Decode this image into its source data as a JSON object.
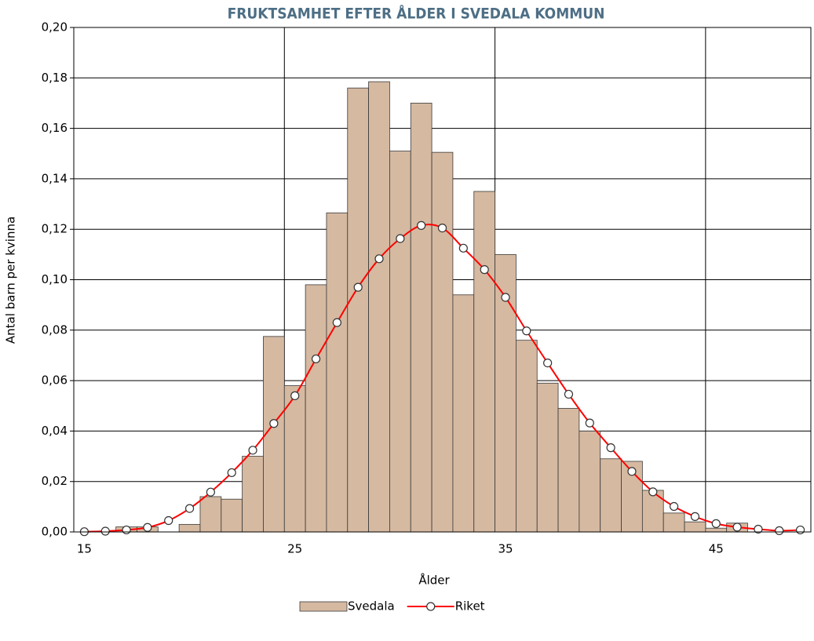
{
  "chart_data": {
    "type": "bar+line",
    "title": "FRUKTSAMHET EFTER ÅLDER I SVEDALA KOMMUN",
    "x_label": "Ålder",
    "y_label": "Antal barn per kvinna",
    "categories": [
      15,
      null,
      null,
      null,
      null,
      null,
      null,
      null,
      null,
      null,
      25,
      null,
      null,
      null,
      null,
      null,
      null,
      null,
      null,
      null,
      35,
      null,
      null,
      null,
      null,
      null,
      null,
      null,
      null,
      null,
      45,
      null,
      null,
      null,
      null
    ],
    "ylim": [
      0,
      0.2
    ],
    "yticks": [
      {
        "value": 0,
        "label": "0,00"
      },
      {
        "value": 0.02,
        "label": "0,02"
      },
      {
        "value": 0.04,
        "label": "0,04"
      },
      {
        "value": 0.06,
        "label": "0,06"
      },
      {
        "value": 0.08,
        "label": "0,08"
      },
      {
        "value": 0.1,
        "label": "0,10"
      },
      {
        "value": 0.12,
        "label": "0,12"
      },
      {
        "value": 0.14,
        "label": "0,14"
      },
      {
        "value": 0.16,
        "label": "0,16"
      },
      {
        "value": 0.18,
        "label": "0,18"
      },
      {
        "value": 0.2,
        "label": "0,20"
      }
    ],
    "grid": true,
    "legend": "bottom",
    "series": [
      {
        "name": "Svedala",
        "type": "bar",
        "color": "#d5b9a1",
        "values": [
          0,
          0,
          0.002,
          0.002,
          0,
          0.003,
          0.014,
          0.013,
          0.03,
          0.0775,
          0.058,
          0.098,
          0.1265,
          0.176,
          0.1785,
          0.151,
          0.17,
          0.1505,
          0.094,
          0.135,
          0.11,
          0.076,
          0.059,
          0.049,
          0.04,
          0.029,
          0.028,
          0.0165,
          0.0075,
          0.004,
          0.0015,
          0.0035,
          0,
          0,
          0
        ]
      },
      {
        "name": "Riket",
        "type": "line",
        "color": "#ff0000",
        "values": [
          0.0001,
          0.0003,
          0.0008,
          0.0018,
          0.0045,
          0.0093,
          0.0158,
          0.0235,
          0.0324,
          0.043,
          0.054,
          0.0686,
          0.083,
          0.097,
          0.1083,
          0.1163,
          0.1215,
          0.1205,
          0.1125,
          0.104,
          0.093,
          0.0797,
          0.067,
          0.0546,
          0.0432,
          0.0334,
          0.024,
          0.0159,
          0.0101,
          0.0061,
          0.0033,
          0.0019,
          0.0011,
          0.0005,
          0.0008
        ]
      }
    ]
  }
}
